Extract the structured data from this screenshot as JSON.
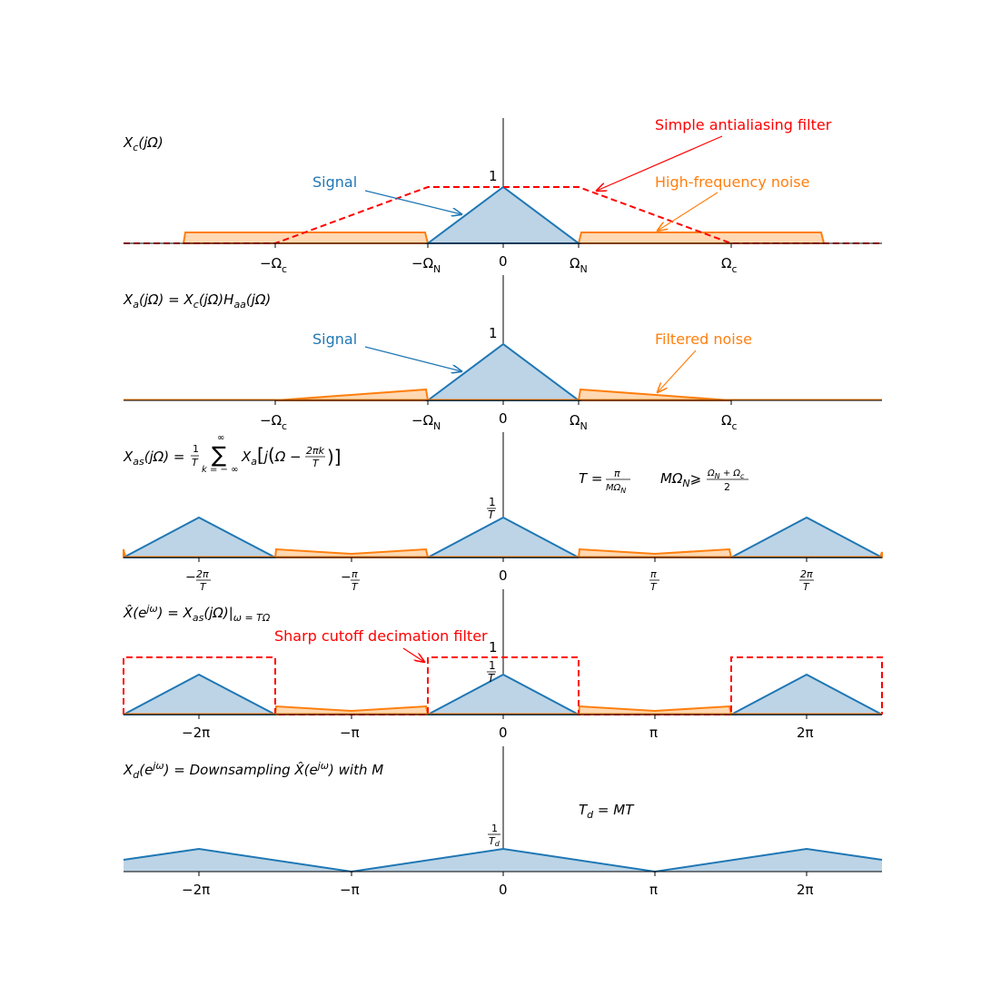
{
  "colors": {
    "signal": "#1f77b4",
    "signal_fill": "#bcd4e6",
    "noise": "#ff7f0e",
    "noise_fill": "#ffd9b3",
    "filter": "#ff0000"
  },
  "panel1": {
    "title": "X_c(jΩ)",
    "peak_label": "1",
    "ticks": [
      "−Ω",
      "−Ω",
      "0",
      "Ω",
      "Ω"
    ],
    "tick_subs": [
      "c",
      "N",
      "",
      "N",
      "c"
    ],
    "annotations": {
      "signal": "Signal",
      "filter": "Simple antialiasing filter",
      "noise": "High-frequency noise"
    }
  },
  "panel2": {
    "title": "X_a(jΩ) = X_c(jΩ)H_aa(jΩ)",
    "peak_label": "1",
    "ticks": [
      "−Ω",
      "−Ω",
      "0",
      "Ω",
      "Ω"
    ],
    "tick_subs": [
      "c",
      "N",
      "",
      "N",
      "c"
    ],
    "annotations": {
      "signal": "Signal",
      "noise": "Filtered noise"
    }
  },
  "panel3": {
    "title": "X_as(jΩ) = (1/T) Σ_{k=−∞}^{∞} X_a[j(Ω − 2πk/T)]",
    "peak_label": "1/T",
    "ticks": [
      "−2π/T",
      "−π/T",
      "0",
      "π/T",
      "2π/T"
    ],
    "formula_T": "T = π / (MΩ_N)",
    "formula_M": "MΩ_N ⩾ (Ω_N + Ω_c)/2"
  },
  "panel4": {
    "title": "X̂(e^{jω}) = X_as(jΩ)|_{ω=TΩ}",
    "peak_label_a": "1",
    "peak_label_b": "1/T",
    "ticks": [
      "−2π",
      "−π",
      "0",
      "π",
      "2π"
    ],
    "annotations": {
      "filter": "Sharp cutoff decimation filter"
    }
  },
  "panel5": {
    "title": "X_d(e^{jω}) = Downsampling X̂(e^{jω}) with M",
    "peak_label": "1/T_d",
    "ticks": [
      "−2π",
      "−π",
      "0",
      "π",
      "2π"
    ],
    "formula_Td": "T_d = MT"
  },
  "chart_data": [
    {
      "type": "area",
      "panel": "X_c(jΩ)",
      "x_units": "Ω / Ω_N",
      "x_ticks": [
        -3,
        -1,
        0,
        1,
        3
      ],
      "series": [
        {
          "name": "Signal",
          "x": [
            -1,
            0,
            1
          ],
          "y": [
            0,
            1,
            0
          ]
        },
        {
          "name": "High-frequency noise",
          "x": [
            -4.2,
            -4.2,
            -1,
            -1,
            1,
            1,
            4.2,
            4.2
          ],
          "y": [
            0,
            0.2,
            0.2,
            0,
            0,
            0.2,
            0.2,
            0
          ]
        },
        {
          "name": "Simple antialiasing filter",
          "x": [
            -5,
            -3,
            -1,
            1,
            3,
            5
          ],
          "y": [
            0,
            0,
            1,
            1,
            0,
            0
          ]
        }
      ]
    },
    {
      "type": "area",
      "panel": "X_a(jΩ)",
      "x_units": "Ω / Ω_N",
      "x_ticks": [
        -3,
        -1,
        0,
        1,
        3
      ],
      "series": [
        {
          "name": "Signal",
          "x": [
            -1,
            0,
            1
          ],
          "y": [
            0,
            1,
            0
          ]
        },
        {
          "name": "Filtered noise",
          "x": [
            -3,
            -1,
            -1,
            1,
            1,
            3
          ],
          "y": [
            0,
            0.2,
            0,
            0,
            0.2,
            0
          ]
        }
      ]
    },
    {
      "type": "area",
      "panel": "X_as(jΩ)",
      "x_units": "Ω (multiples of π/T)",
      "x_ticks": [
        -2,
        -1,
        0,
        1,
        2
      ],
      "y_peak": "1/T"
    },
    {
      "type": "area",
      "panel": "X̂(e^{jω})",
      "x_units": "ω / π",
      "x_ticks": [
        -2,
        -1,
        0,
        1,
        2
      ],
      "filter": {
        "name": "Sharp cutoff decimation filter",
        "passbands": [
          [
            -2.5,
            -1
          ],
          [
            -0.5,
            0.5
          ],
          [
            1.5,
            2.5
          ]
        ]
      }
    },
    {
      "type": "area",
      "panel": "X_d(e^{jω})",
      "x_units": "ω / π",
      "x_ticks": [
        -2,
        -1,
        0,
        1,
        2
      ],
      "series": [
        {
          "name": "Signal",
          "x": [
            -2.5,
            -2,
            -1,
            0,
            1,
            2,
            2.5
          ],
          "y": [
            0.5,
            1,
            0,
            1,
            0,
            1,
            0.5
          ]
        }
      ]
    }
  ]
}
